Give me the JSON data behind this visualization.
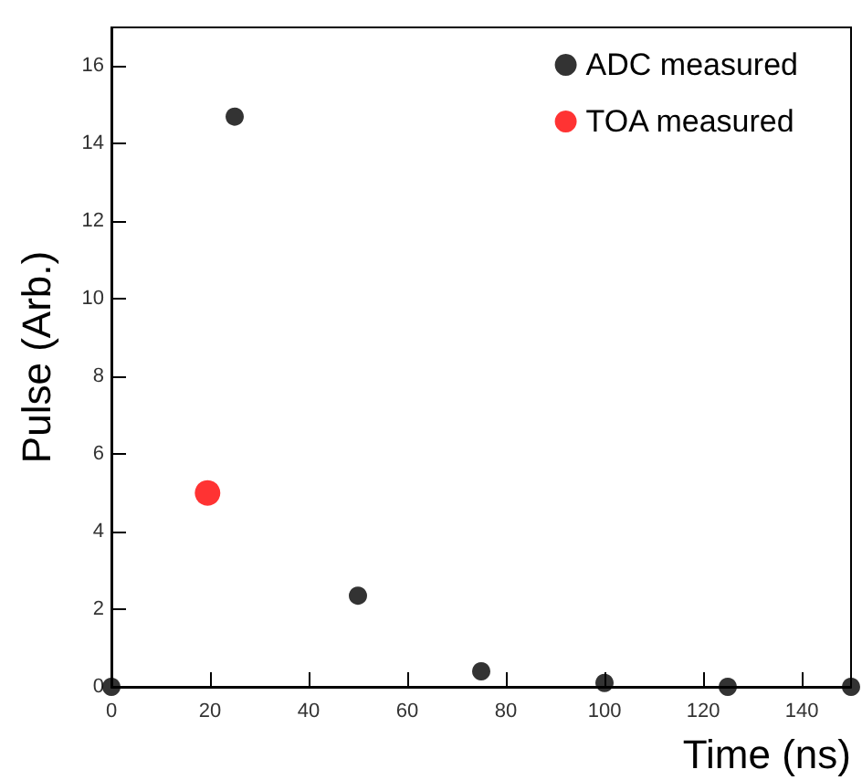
{
  "chart_data": {
    "type": "scatter",
    "xlabel": "Time (ns)",
    "ylabel": "Pulse (Arb.)",
    "xlim": [
      0,
      150
    ],
    "ylim": [
      0,
      17
    ],
    "xticks": [
      0,
      20,
      40,
      60,
      80,
      100,
      120,
      140
    ],
    "yticks": [
      0,
      2,
      4,
      6,
      8,
      10,
      12,
      14,
      16
    ],
    "series": [
      {
        "name": "ADC measured",
        "color": "#000000",
        "x": [
          0,
          25,
          50,
          75,
          100,
          125,
          150
        ],
        "values": [
          0,
          14.7,
          2.35,
          0.4,
          0.1,
          0,
          0
        ]
      },
      {
        "name": "TOA measured",
        "color": "#ff0000",
        "x": [
          19.5
        ],
        "values": [
          5
        ]
      }
    ],
    "legend": "top right",
    "grid": false,
    "marker": "circle"
  }
}
